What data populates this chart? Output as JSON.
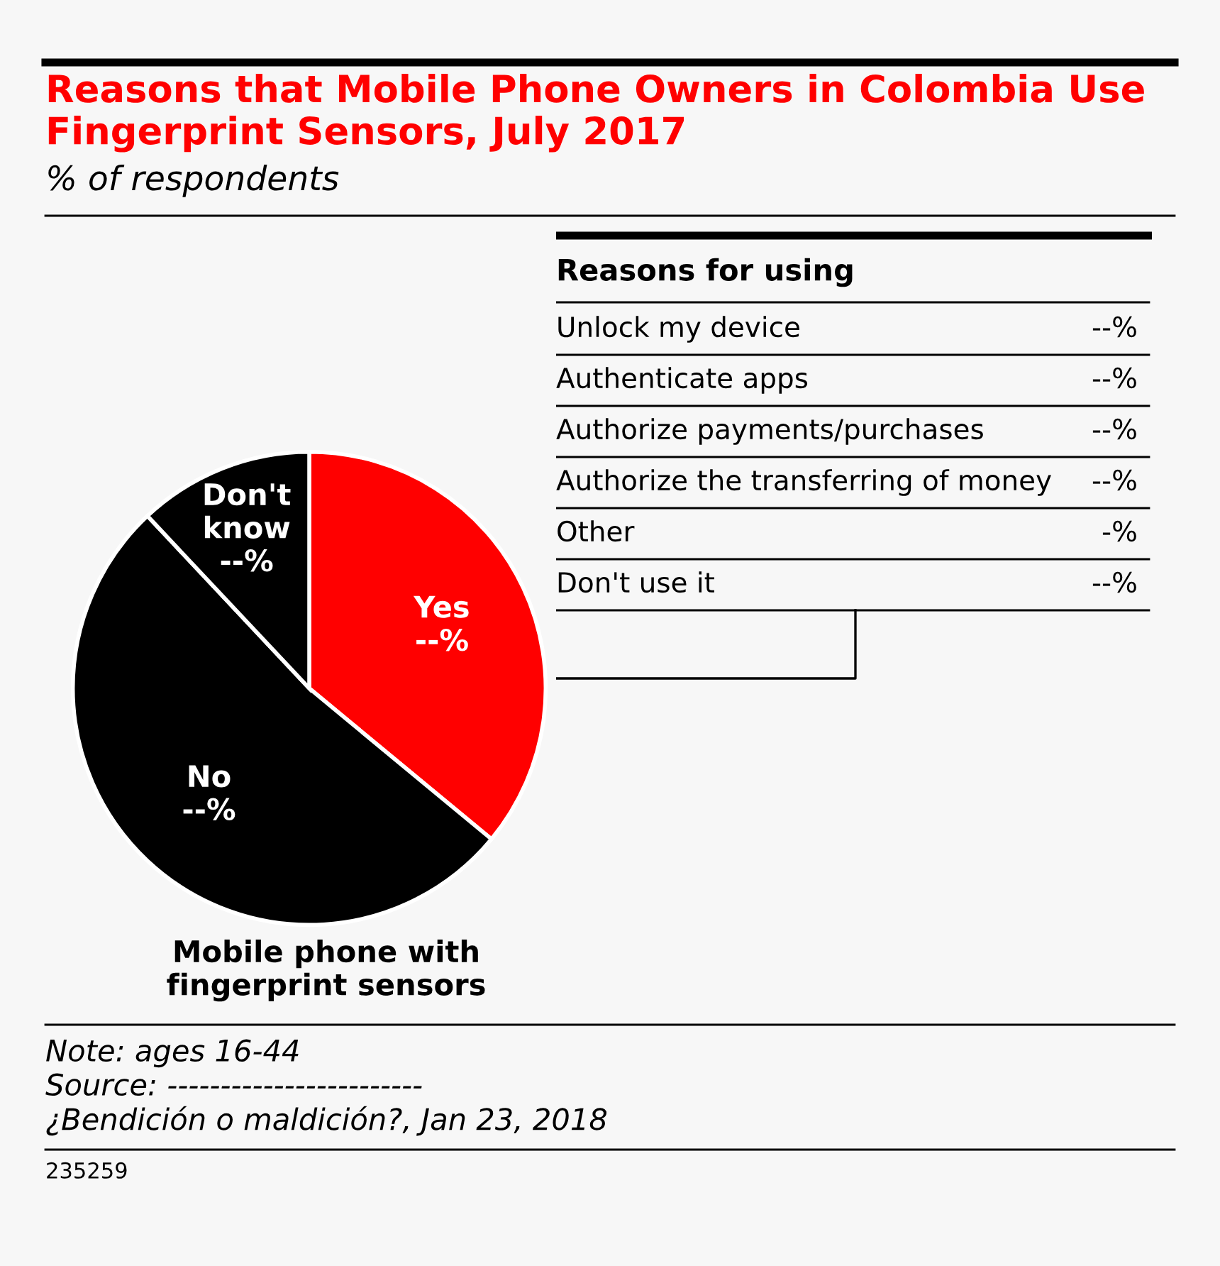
{
  "chart_data": [
    {
      "type": "pie",
      "title": "Reasons that Mobile Phone Owners in Colombia Use Fingerprint Sensors, July 2017",
      "subtitle": "% of respondents",
      "xlabel": "Mobile phone with fingerprint sensors",
      "categories": [
        "Yes",
        "No",
        "Don't know"
      ],
      "values": [
        36,
        52,
        12
      ],
      "colors": [
        "#ff0000",
        "#000000",
        "#000000"
      ],
      "value_labels": [
        "--%",
        "--%",
        "--%"
      ],
      "legend": false,
      "annotations": [
        "Note: ages 16-44",
        "Source: ------------------------",
        "¿Bendición o maldición?, Jan 23, 2018",
        "235259"
      ]
    },
    {
      "type": "other",
      "title": "Reasons for using",
      "categories": [
        "Unlock my device",
        "Authenticate apps",
        "Authorize payments/purchases",
        "Authorize the transferring of money",
        "Other",
        "Don't use it"
      ],
      "value_labels": [
        "--%",
        "--%",
        "--%",
        "--%",
        "-%",
        "--%"
      ]
    }
  ]
}
